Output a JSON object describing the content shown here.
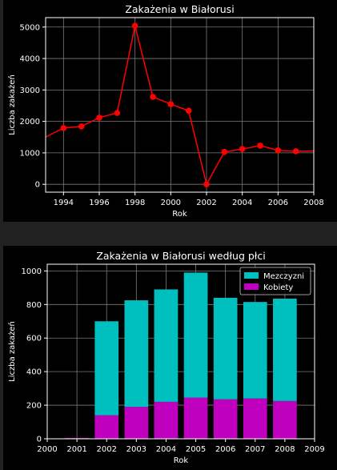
{
  "chart_data": [
    {
      "type": "line",
      "title": "Zakażenia w Białorusi",
      "xlabel": "Rok",
      "ylabel": "Liczba zakażeń",
      "xlim": [
        1993,
        2008
      ],
      "ylim": [
        -250,
        5300
      ],
      "xticks": [
        1994,
        1996,
        1998,
        2000,
        2002,
        2004,
        2006,
        2008
      ],
      "yticks": [
        0,
        1000,
        2000,
        3000,
        4000,
        5000
      ],
      "grid": true,
      "series": [
        {
          "color": "#ff0000",
          "x": [
            1993,
            1994,
            1995,
            1996,
            1997,
            1998,
            1999,
            2000,
            2001,
            2002,
            2003,
            2004,
            2005,
            2006,
            2007,
            2008
          ],
          "y": [
            1500,
            1790,
            1840,
            2120,
            2270,
            5040,
            2780,
            2550,
            2340,
            0,
            1030,
            1120,
            1230,
            1080,
            1050,
            1060
          ]
        }
      ]
    },
    {
      "type": "bar",
      "stacked": true,
      "title": "Zakażenia w Białorusi według płci",
      "xlabel": "Rok",
      "ylabel": "Liczba zakażeń",
      "xlim": [
        2000,
        2009
      ],
      "ylim": [
        0,
        1040
      ],
      "xticks": [
        2000,
        2001,
        2002,
        2003,
        2004,
        2005,
        2006,
        2007,
        2008,
        2009
      ],
      "yticks": [
        0,
        200,
        400,
        600,
        800,
        1000
      ],
      "grid": true,
      "legend": "top-right",
      "categories": [
        2001,
        2002,
        2003,
        2004,
        2005,
        2006,
        2007,
        2008
      ],
      "series": [
        {
          "name": "Kobiety",
          "color": "#bf00bf",
          "values": [
            5,
            140,
            190,
            220,
            245,
            235,
            240,
            225
          ]
        },
        {
          "name": "Mezczyzni",
          "color": "#00bfbf",
          "values": [
            0,
            560,
            635,
            670,
            745,
            605,
            575,
            610
          ]
        }
      ]
    }
  ]
}
